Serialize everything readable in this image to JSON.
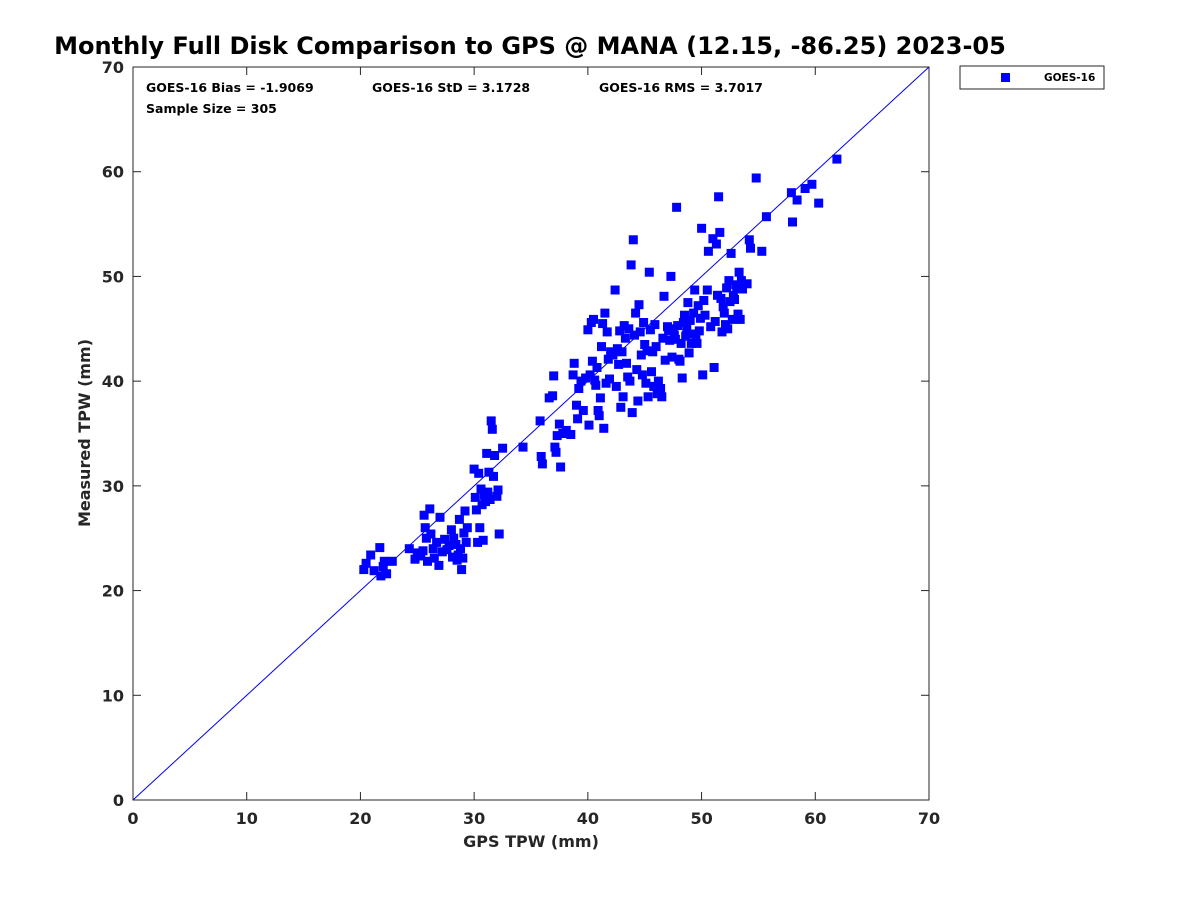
{
  "chart_data": {
    "type": "scatter",
    "title": "Monthly Full Disk Comparison to GPS @ MANA (12.15, -86.25) 2023-05",
    "xlabel": "GPS TPW (mm)",
    "ylabel": "Measured TPW (mm)",
    "xlim": [
      0,
      70
    ],
    "ylim": [
      0,
      70
    ],
    "xticks": [
      "0",
      "10",
      "20",
      "30",
      "40",
      "50",
      "60",
      "70"
    ],
    "yticks": [
      "0",
      "10",
      "20",
      "30",
      "40",
      "50",
      "60",
      "70"
    ],
    "grid": false,
    "legend_position": "outside-top-right",
    "reference_line": "1:1",
    "stats": {
      "bias": "GOES-16 Bias = -1.9069",
      "std": "GOES-16 StD = 3.1728",
      "rms": "GOES-16 RMS = 3.7017",
      "sample": "Sample Size = 305"
    },
    "series": [
      {
        "name": "GOES-16",
        "color": "#0000ff",
        "marker": "square",
        "points": [
          [
            20.3,
            22.0
          ],
          [
            20.5,
            22.6
          ],
          [
            20.9,
            23.4
          ],
          [
            21.2,
            21.9
          ],
          [
            21.7,
            24.1
          ],
          [
            21.8,
            21.4
          ],
          [
            22.0,
            22.3
          ],
          [
            22.1,
            22.8
          ],
          [
            22.3,
            21.6
          ],
          [
            22.8,
            22.8
          ],
          [
            24.3,
            24.0
          ],
          [
            24.8,
            23.0
          ],
          [
            25.0,
            23.6
          ],
          [
            25.3,
            23.3
          ],
          [
            25.5,
            23.8
          ],
          [
            25.6,
            27.2
          ],
          [
            25.7,
            26.0
          ],
          [
            25.8,
            25.0
          ],
          [
            25.9,
            22.8
          ],
          [
            26.1,
            27.8
          ],
          [
            26.2,
            25.4
          ],
          [
            26.4,
            24.0
          ],
          [
            26.5,
            23.1
          ],
          [
            26.7,
            24.6
          ],
          [
            26.9,
            22.4
          ],
          [
            27.0,
            27.0
          ],
          [
            27.2,
            23.7
          ],
          [
            27.4,
            24.9
          ],
          [
            27.6,
            23.9
          ],
          [
            27.8,
            24.3
          ],
          [
            28.0,
            25.8
          ],
          [
            28.1,
            23.2
          ],
          [
            28.2,
            25.0
          ],
          [
            28.4,
            24.4
          ],
          [
            28.5,
            22.9
          ],
          [
            28.6,
            23.4
          ],
          [
            28.7,
            26.8
          ],
          [
            28.8,
            24.0
          ],
          [
            28.9,
            22.0
          ],
          [
            29.0,
            23.1
          ],
          [
            29.1,
            25.5
          ],
          [
            29.2,
            27.6
          ],
          [
            29.3,
            24.6
          ],
          [
            29.4,
            26.0
          ],
          [
            30.0,
            31.6
          ],
          [
            30.1,
            28.9
          ],
          [
            30.2,
            27.7
          ],
          [
            30.3,
            24.6
          ],
          [
            30.4,
            31.2
          ],
          [
            30.5,
            26.0
          ],
          [
            30.6,
            29.7
          ],
          [
            30.7,
            28.2
          ],
          [
            30.8,
            24.8
          ],
          [
            30.9,
            29.1
          ],
          [
            31.0,
            28.5
          ],
          [
            31.1,
            33.1
          ],
          [
            31.2,
            29.4
          ],
          [
            31.3,
            31.3
          ],
          [
            31.4,
            28.7
          ],
          [
            31.5,
            36.2
          ],
          [
            31.6,
            35.4
          ],
          [
            31.7,
            30.9
          ],
          [
            31.8,
            32.9
          ],
          [
            32.0,
            29.0
          ],
          [
            32.1,
            29.6
          ],
          [
            32.2,
            25.4
          ],
          [
            32.5,
            33.6
          ],
          [
            34.3,
            33.7
          ],
          [
            35.8,
            36.2
          ],
          [
            35.9,
            32.8
          ],
          [
            36.0,
            32.1
          ],
          [
            36.6,
            38.4
          ],
          [
            36.9,
            38.6
          ],
          [
            37.0,
            40.5
          ],
          [
            37.1,
            33.7
          ],
          [
            37.2,
            33.2
          ],
          [
            37.3,
            34.8
          ],
          [
            37.5,
            35.9
          ],
          [
            37.6,
            31.8
          ],
          [
            37.8,
            35.0
          ],
          [
            38.1,
            35.3
          ],
          [
            38.5,
            34.9
          ],
          [
            38.7,
            40.6
          ],
          [
            38.8,
            41.7
          ],
          [
            39.0,
            37.7
          ],
          [
            39.1,
            36.4
          ],
          [
            39.2,
            39.3
          ],
          [
            39.4,
            40.0
          ],
          [
            39.6,
            37.2
          ],
          [
            39.8,
            40.3
          ],
          [
            40.0,
            44.9
          ],
          [
            40.1,
            35.8
          ],
          [
            40.2,
            40.6
          ],
          [
            40.3,
            45.6
          ],
          [
            40.4,
            41.9
          ],
          [
            40.5,
            45.9
          ],
          [
            40.6,
            40.1
          ],
          [
            40.7,
            39.6
          ],
          [
            40.8,
            41.3
          ],
          [
            40.9,
            37.2
          ],
          [
            41.0,
            36.7
          ],
          [
            41.1,
            38.4
          ],
          [
            41.2,
            43.3
          ],
          [
            41.3,
            45.5
          ],
          [
            41.4,
            35.5
          ],
          [
            41.5,
            46.5
          ],
          [
            41.6,
            39.8
          ],
          [
            41.7,
            44.7
          ],
          [
            41.8,
            42.1
          ],
          [
            41.9,
            40.2
          ],
          [
            42.0,
            42.8
          ],
          [
            42.2,
            42.5
          ],
          [
            42.4,
            48.7
          ],
          [
            42.5,
            39.5
          ],
          [
            42.6,
            43.1
          ],
          [
            42.7,
            41.6
          ],
          [
            42.8,
            44.8
          ],
          [
            42.9,
            37.5
          ],
          [
            43.0,
            42.8
          ],
          [
            43.1,
            38.5
          ],
          [
            43.2,
            45.3
          ],
          [
            43.3,
            44.1
          ],
          [
            43.4,
            41.7
          ],
          [
            43.5,
            40.4
          ],
          [
            43.6,
            45.0
          ],
          [
            43.7,
            40.0
          ],
          [
            43.8,
            51.1
          ],
          [
            43.9,
            37.0
          ],
          [
            44.0,
            53.5
          ],
          [
            44.1,
            44.4
          ],
          [
            44.2,
            46.5
          ],
          [
            44.3,
            41.1
          ],
          [
            44.4,
            38.1
          ],
          [
            44.5,
            47.3
          ],
          [
            44.6,
            44.7
          ],
          [
            44.7,
            42.5
          ],
          [
            44.8,
            40.6
          ],
          [
            44.9,
            45.6
          ],
          [
            45.0,
            43.5
          ],
          [
            45.1,
            39.8
          ],
          [
            45.2,
            42.9
          ],
          [
            45.3,
            38.5
          ],
          [
            45.4,
            50.4
          ],
          [
            45.5,
            44.9
          ],
          [
            45.6,
            40.9
          ],
          [
            45.7,
            42.8
          ],
          [
            45.8,
            39.5
          ],
          [
            45.9,
            45.4
          ],
          [
            46.0,
            43.3
          ],
          [
            46.1,
            38.8
          ],
          [
            46.2,
            40.0
          ],
          [
            46.4,
            39.3
          ],
          [
            46.5,
            38.5
          ],
          [
            46.6,
            44.1
          ],
          [
            46.7,
            48.1
          ],
          [
            46.8,
            42.0
          ],
          [
            47.0,
            45.2
          ],
          [
            47.1,
            44.8
          ],
          [
            47.2,
            43.9
          ],
          [
            47.3,
            50.0
          ],
          [
            47.4,
            42.3
          ],
          [
            47.5,
            45.0
          ],
          [
            47.6,
            44.4
          ],
          [
            47.7,
            44.0
          ],
          [
            47.8,
            56.6
          ],
          [
            47.9,
            45.3
          ],
          [
            48.0,
            42.1
          ],
          [
            48.1,
            41.9
          ],
          [
            48.2,
            43.6
          ],
          [
            48.3,
            40.3
          ],
          [
            48.4,
            45.6
          ],
          [
            48.5,
            46.3
          ],
          [
            48.6,
            44.3
          ],
          [
            48.7,
            45.1
          ],
          [
            48.8,
            47.5
          ],
          [
            48.9,
            42.7
          ],
          [
            49.0,
            45.8
          ],
          [
            49.1,
            43.6
          ],
          [
            49.2,
            44.5
          ],
          [
            49.3,
            46.5
          ],
          [
            49.4,
            48.7
          ],
          [
            49.5,
            44.4
          ],
          [
            49.6,
            43.6
          ],
          [
            49.7,
            47.2
          ],
          [
            49.8,
            44.8
          ],
          [
            49.9,
            46.0
          ],
          [
            50.0,
            54.6
          ],
          [
            50.1,
            40.6
          ],
          [
            50.2,
            47.7
          ],
          [
            50.3,
            46.3
          ],
          [
            50.5,
            48.7
          ],
          [
            50.6,
            52.4
          ],
          [
            50.8,
            45.2
          ],
          [
            51.0,
            53.6
          ],
          [
            51.1,
            41.3
          ],
          [
            51.2,
            45.7
          ],
          [
            51.3,
            53.1
          ],
          [
            51.4,
            48.2
          ],
          [
            51.5,
            57.6
          ],
          [
            51.6,
            54.2
          ],
          [
            51.7,
            47.9
          ],
          [
            51.8,
            44.7
          ],
          [
            51.9,
            47.1
          ],
          [
            52.0,
            46.5
          ],
          [
            52.1,
            45.4
          ],
          [
            52.2,
            48.9
          ],
          [
            52.3,
            45.0
          ],
          [
            52.4,
            49.6
          ],
          [
            52.5,
            47.6
          ],
          [
            52.6,
            52.2
          ],
          [
            52.7,
            45.9
          ],
          [
            52.8,
            48.2
          ],
          [
            52.9,
            47.8
          ],
          [
            53.0,
            49.2
          ],
          [
            53.1,
            48.9
          ],
          [
            53.2,
            46.4
          ],
          [
            53.3,
            50.4
          ],
          [
            53.4,
            45.9
          ],
          [
            53.5,
            49.6
          ],
          [
            53.6,
            48.8
          ],
          [
            54.0,
            49.3
          ],
          [
            54.2,
            53.5
          ],
          [
            54.3,
            52.7
          ],
          [
            54.8,
            59.4
          ],
          [
            55.3,
            52.4
          ],
          [
            55.7,
            55.7
          ],
          [
            57.9,
            58.0
          ],
          [
            58.0,
            55.2
          ],
          [
            58.4,
            57.3
          ],
          [
            59.1,
            58.4
          ],
          [
            59.7,
            58.8
          ],
          [
            60.3,
            57.0
          ],
          [
            61.9,
            61.2
          ]
        ]
      }
    ]
  }
}
